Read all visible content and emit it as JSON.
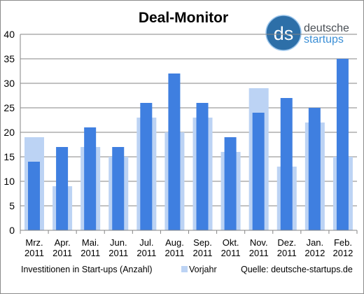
{
  "chart_data": {
    "type": "bar",
    "title": "Deal-Monitor",
    "categories": [
      [
        "Mrz.",
        "2011"
      ],
      [
        "Apr.",
        "2011"
      ],
      [
        "Mai.",
        "2011"
      ],
      [
        "Jun.",
        "2011"
      ],
      [
        "Jul.",
        "2011"
      ],
      [
        "Aug.",
        "2011"
      ],
      [
        "Sep.",
        "2011"
      ],
      [
        "Okt.",
        "2011"
      ],
      [
        "Nov.",
        "2011"
      ],
      [
        "Dez.",
        "2011"
      ],
      [
        "Jan.",
        "2012"
      ],
      [
        "Feb.",
        "2012"
      ]
    ],
    "series": [
      {
        "name": "Investitionen in Start-ups (Anzahl)",
        "color": "#3f7fe0",
        "values": [
          14,
          17,
          21,
          17,
          26,
          32,
          26,
          19,
          24,
          27,
          25,
          35
        ]
      },
      {
        "name": "Vorjahr",
        "color": "#bcd3f4",
        "values": [
          19,
          9,
          17,
          15,
          23,
          20,
          23,
          16,
          29,
          13,
          22,
          15
        ]
      }
    ],
    "ylim": [
      0,
      40
    ],
    "yticks": [
      0,
      5,
      10,
      15,
      20,
      25,
      30,
      35,
      40
    ],
    "grid": true,
    "legend_position": "bottom"
  },
  "logo": {
    "mark": "ds",
    "line1": "deutsche",
    "line2": "startups"
  },
  "source_note": "Quelle: deutsche-startups.de"
}
